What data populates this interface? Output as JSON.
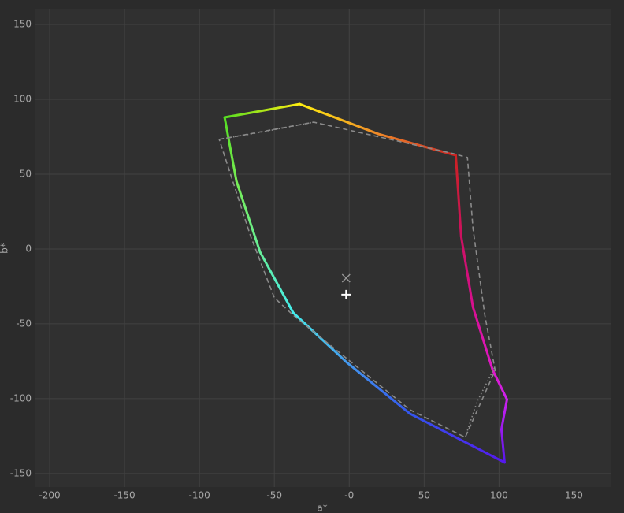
{
  "chart_data": {
    "type": "line",
    "x_label": "a*",
    "y_label": "b*",
    "xlim": [
      -210,
      175
    ],
    "ylim": [
      -159,
      160
    ],
    "xticks": [
      -200,
      -150,
      -100,
      -50,
      {
        "value": 0,
        "label": "-0"
      },
      50,
      100,
      150
    ],
    "yticks": [
      150,
      100,
      50,
      0,
      -50,
      -100,
      -150
    ],
    "grid": true,
    "series": [
      {
        "style": "gradient",
        "x": [
          -83.2,
          -33.2,
          19.5,
          71.1,
          74.7,
          82.6,
          95.8,
          105.3,
          101.6,
          103.7,
          40.5,
          -1.6,
          -37.4,
          -59.5,
          -75.3,
          -83.2
        ],
        "values": [
          87.9,
          96.8,
          76.8,
          62.6,
          8.4,
          -38.9,
          -81,
          -100.5,
          -120.5,
          -142.6,
          -110,
          -75.8,
          -42.6,
          -2.1,
          45.3,
          87.9
        ],
        "colors": [
          "#55dd22",
          "#ffee11",
          "#f08828",
          "#cc2222",
          "#cc1160",
          "#d81090",
          "#e018c8",
          "#cc22ee",
          "#9a1aee",
          "#5518ee",
          "#3355ee",
          "#4499ee",
          "#44eeee",
          "#66ee99",
          "#77ee55",
          "#55dd22"
        ]
      },
      {
        "style": "dashed",
        "color": "#8a8a8a",
        "x": [
          -86.8,
          -23.7,
          69.5,
          78.9,
          82.6,
          90.5,
          97.4,
          77.4,
          40.5,
          -37.4,
          -50,
          -65.8,
          -86.8
        ],
        "values": [
          73.2,
          84.7,
          63.7,
          61.1,
          13.7,
          -44.2,
          -81.1,
          -125.8,
          -107.4,
          -44.2,
          -32.6,
          8.4,
          73.2
        ]
      },
      {
        "style": "dotted",
        "color": "#8a8a8a",
        "x": [
          -86.8,
          -59.5,
          -23.7,
          null,
          77.4,
          85.3,
          97.4
        ],
        "values": [
          73.2,
          77.9,
          84.7,
          null,
          -125.8,
          -102.1,
          -78.4
        ]
      },
      {
        "style": "marker",
        "marker": "x",
        "color": "#9a9a9a",
        "x": [
          -2.1
        ],
        "values": [
          -19.5
        ]
      },
      {
        "style": "marker",
        "marker": "+",
        "color": "#ffffff",
        "x": [
          -2.1
        ],
        "values": [
          -30.5
        ]
      }
    ]
  }
}
